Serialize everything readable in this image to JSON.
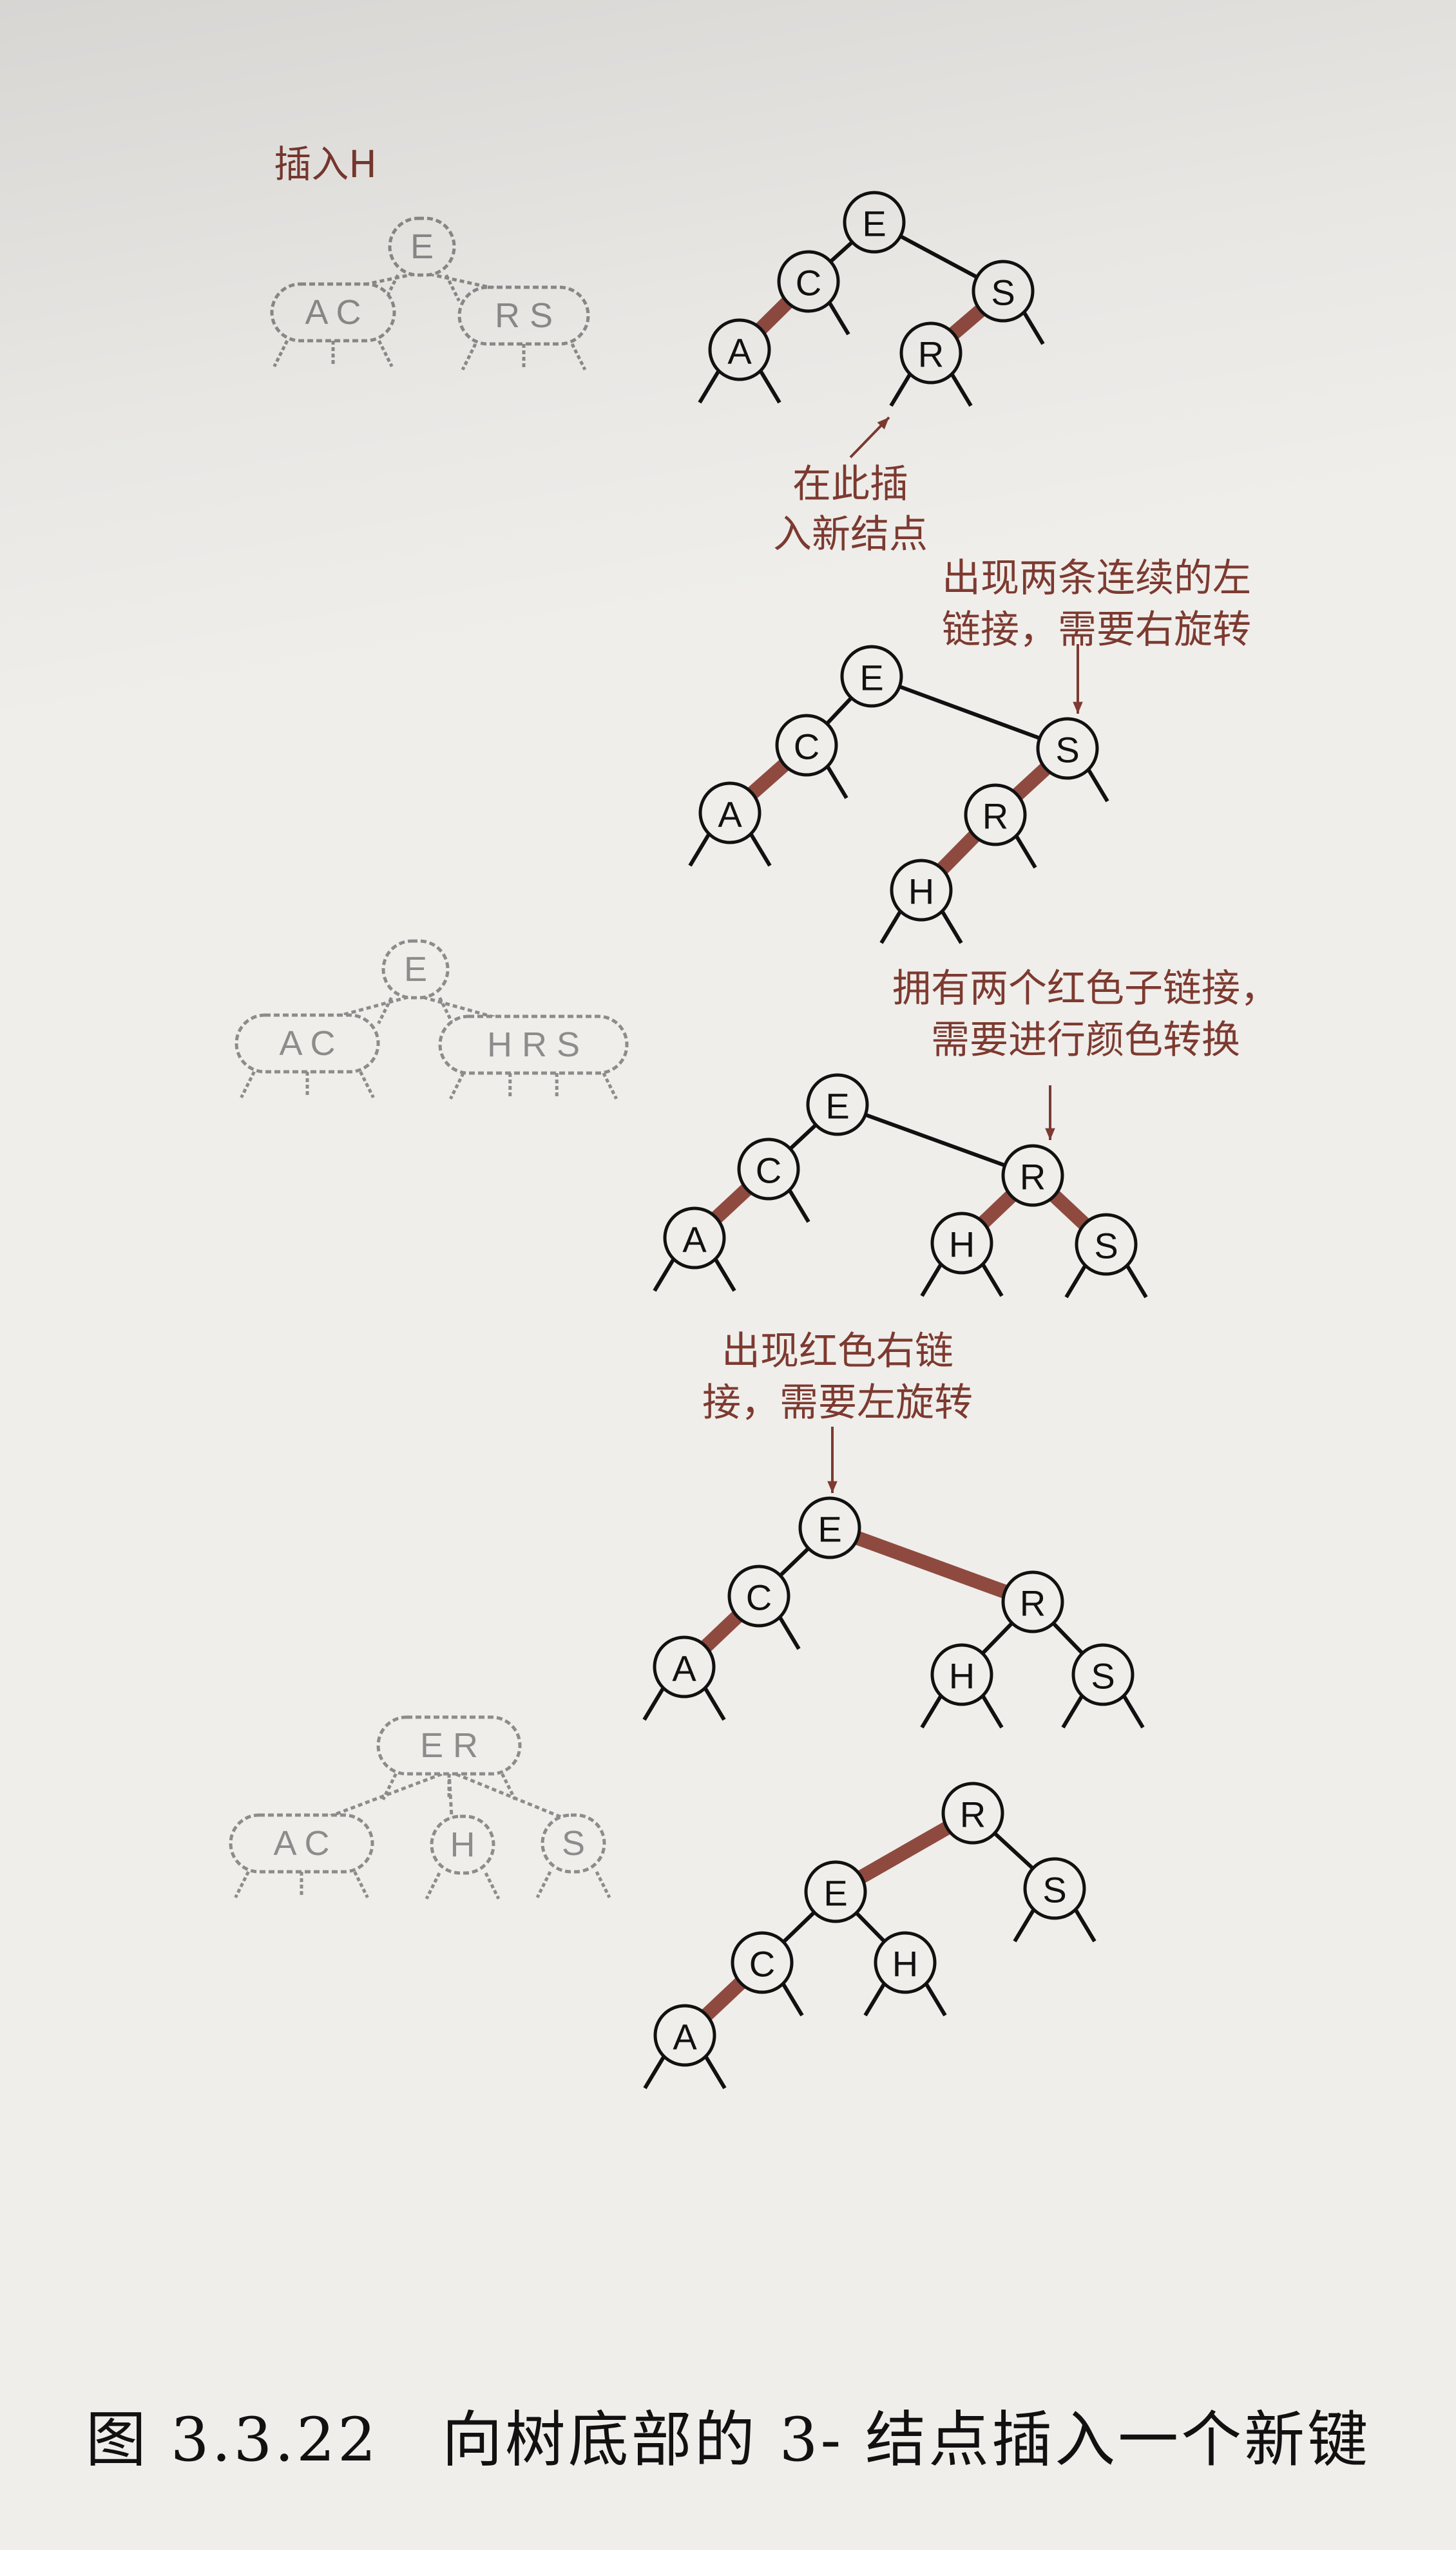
{
  "insert_label": "插入H",
  "caption": "图 3.3.22　向树底部的 3- 结点插入一个新键",
  "colors": {
    "red_link": "#8f4a40",
    "black_link": "#111111",
    "faded": "#8c8c8c",
    "annotation": "#7d3a30",
    "node_fill": "#efeeeb"
  },
  "annotations": [
    {
      "id": "insert-new-node",
      "lines": [
        "在此插",
        "入新结点"
      ]
    },
    {
      "id": "two-left-reds",
      "lines": [
        "出现两条连续的左",
        "链接，需要右旋转"
      ]
    },
    {
      "id": "two-red-children",
      "lines": [
        "拥有两个红色子链接，",
        "需要进行颜色转换"
      ]
    },
    {
      "id": "red-right-link",
      "lines": [
        "出现红色右链",
        "接，需要左旋转"
      ]
    }
  ],
  "trees_23": [
    {
      "step": 1,
      "nodes": [
        {
          "id": "E",
          "label": "E"
        },
        {
          "id": "AC",
          "label": "A C"
        },
        {
          "id": "RS",
          "label": "R S"
        }
      ]
    },
    {
      "step": 2,
      "nodes": [
        {
          "id": "E",
          "label": "E"
        },
        {
          "id": "AC",
          "label": "A C"
        },
        {
          "id": "HRS",
          "label": "H R S"
        }
      ]
    },
    {
      "step": 3,
      "nodes": [
        {
          "id": "ER",
          "label": "E R"
        },
        {
          "id": "AC",
          "label": "A C"
        },
        {
          "id": "H",
          "label": "H"
        },
        {
          "id": "S",
          "label": "S"
        }
      ]
    }
  ],
  "trees_rb": [
    {
      "step": 1,
      "nodes": [
        {
          "id": "E",
          "label": "E"
        },
        {
          "id": "C",
          "label": "C"
        },
        {
          "id": "A",
          "label": "A"
        },
        {
          "id": "S",
          "label": "S"
        },
        {
          "id": "R",
          "label": "R"
        }
      ],
      "edges": [
        {
          "from": "E",
          "to": "C",
          "color": "black"
        },
        {
          "from": "C",
          "to": "A",
          "color": "red"
        },
        {
          "from": "E",
          "to": "S",
          "color": "black"
        },
        {
          "from": "S",
          "to": "R",
          "color": "red"
        }
      ]
    },
    {
      "step": 2,
      "nodes": [
        {
          "id": "E",
          "label": "E"
        },
        {
          "id": "C",
          "label": "C"
        },
        {
          "id": "A",
          "label": "A"
        },
        {
          "id": "S",
          "label": "S"
        },
        {
          "id": "R",
          "label": "R"
        },
        {
          "id": "H",
          "label": "H"
        }
      ],
      "edges": [
        {
          "from": "E",
          "to": "C",
          "color": "black"
        },
        {
          "from": "C",
          "to": "A",
          "color": "red"
        },
        {
          "from": "E",
          "to": "S",
          "color": "black"
        },
        {
          "from": "S",
          "to": "R",
          "color": "red"
        },
        {
          "from": "R",
          "to": "H",
          "color": "red"
        }
      ]
    },
    {
      "step": 3,
      "nodes": [
        {
          "id": "E",
          "label": "E"
        },
        {
          "id": "C",
          "label": "C"
        },
        {
          "id": "A",
          "label": "A"
        },
        {
          "id": "R",
          "label": "R"
        },
        {
          "id": "H",
          "label": "H"
        },
        {
          "id": "S",
          "label": "S"
        }
      ],
      "edges": [
        {
          "from": "E",
          "to": "C",
          "color": "black"
        },
        {
          "from": "C",
          "to": "A",
          "color": "red"
        },
        {
          "from": "E",
          "to": "R",
          "color": "black"
        },
        {
          "from": "R",
          "to": "H",
          "color": "red"
        },
        {
          "from": "R",
          "to": "S",
          "color": "red"
        }
      ]
    },
    {
      "step": 4,
      "nodes": [
        {
          "id": "E",
          "label": "E"
        },
        {
          "id": "C",
          "label": "C"
        },
        {
          "id": "A",
          "label": "A"
        },
        {
          "id": "R",
          "label": "R"
        },
        {
          "id": "H",
          "label": "H"
        },
        {
          "id": "S",
          "label": "S"
        }
      ],
      "edges": [
        {
          "from": "E",
          "to": "C",
          "color": "black"
        },
        {
          "from": "C",
          "to": "A",
          "color": "red"
        },
        {
          "from": "E",
          "to": "R",
          "color": "red"
        },
        {
          "from": "R",
          "to": "H",
          "color": "black"
        },
        {
          "from": "R",
          "to": "S",
          "color": "black"
        }
      ]
    },
    {
      "step": 5,
      "nodes": [
        {
          "id": "R",
          "label": "R"
        },
        {
          "id": "E",
          "label": "E"
        },
        {
          "id": "S",
          "label": "S"
        },
        {
          "id": "C",
          "label": "C"
        },
        {
          "id": "H",
          "label": "H"
        },
        {
          "id": "A",
          "label": "A"
        }
      ],
      "edges": [
        {
          "from": "R",
          "to": "E",
          "color": "red"
        },
        {
          "from": "R",
          "to": "S",
          "color": "black"
        },
        {
          "from": "E",
          "to": "C",
          "color": "black"
        },
        {
          "from": "E",
          "to": "H",
          "color": "black"
        },
        {
          "from": "C",
          "to": "A",
          "color": "red"
        }
      ]
    }
  ]
}
